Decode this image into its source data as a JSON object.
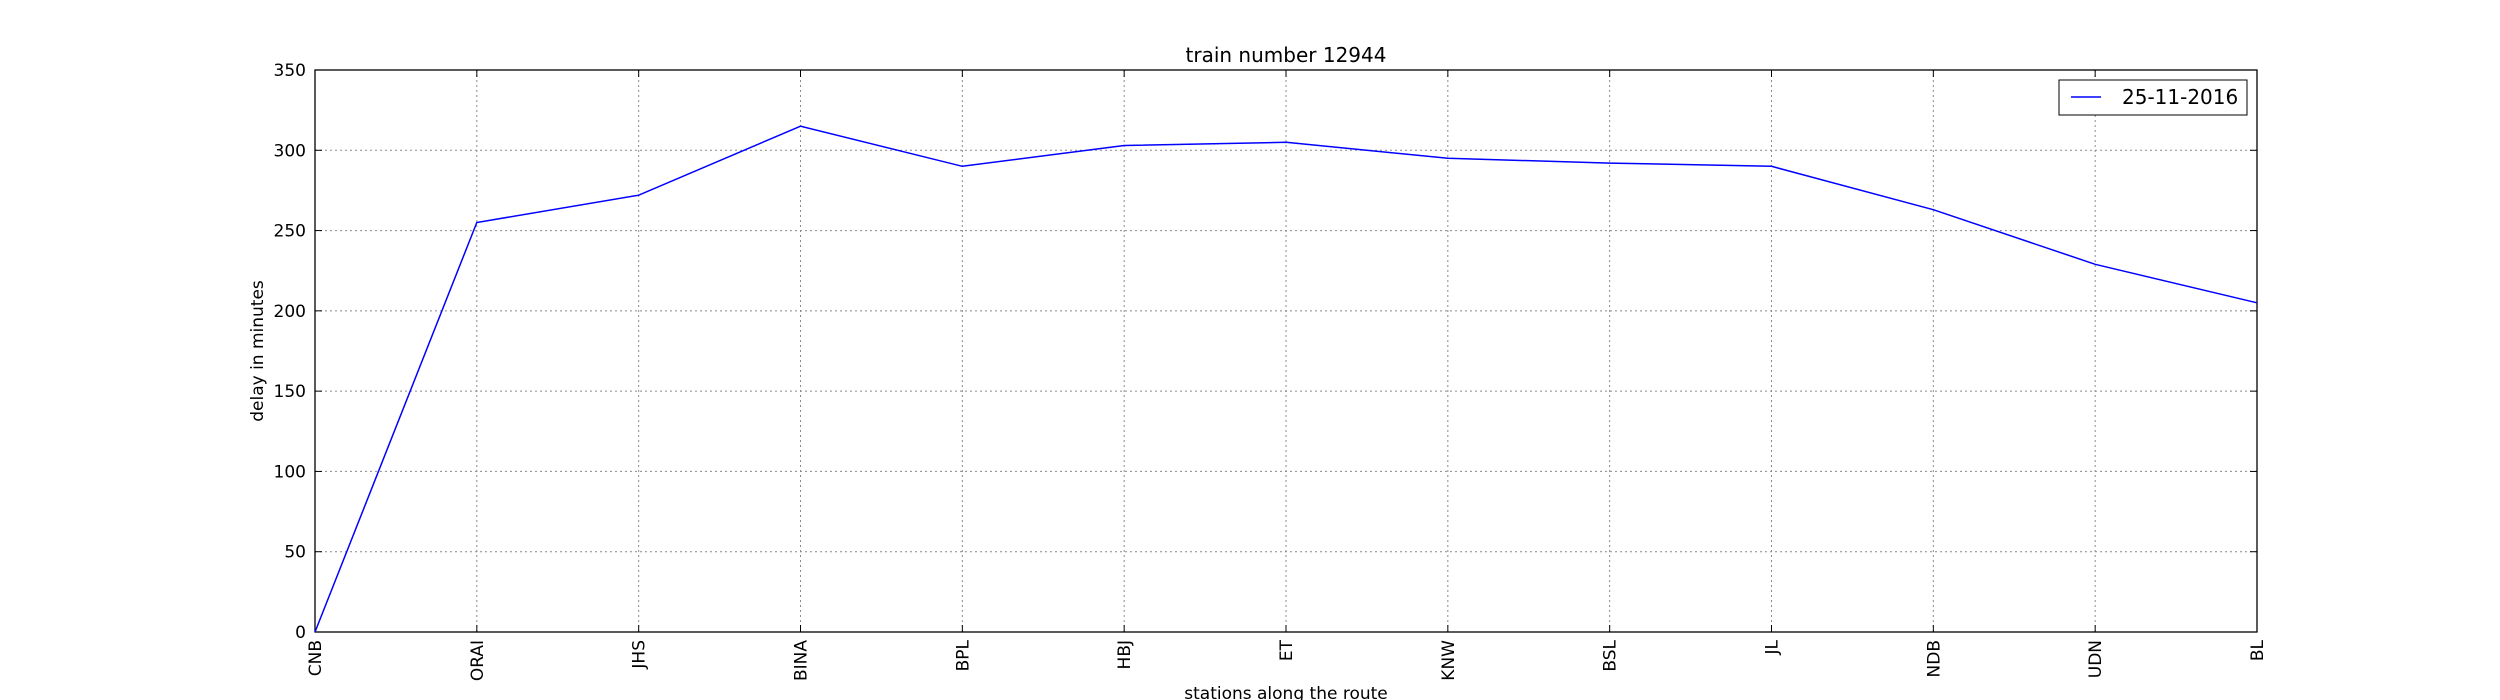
{
  "chart_data": {
    "type": "line",
    "title": "train number 12944",
    "xlabel": "stations along the route",
    "ylabel": "delay in minutes",
    "categories": [
      "CNB",
      "ORAI",
      "JHS",
      "BINA",
      "BPL",
      "HBJ",
      "ET",
      "KNW",
      "BSL",
      "JL",
      "NDB",
      "UDN",
      "BL"
    ],
    "series": [
      {
        "name": "25-11-2016",
        "color": "#0000ff",
        "values": [
          0,
          255,
          272,
          315,
          290,
          303,
          305,
          295,
          292,
          290,
          263,
          229,
          205
        ]
      }
    ],
    "ylim": [
      0,
      350
    ],
    "yticks": [
      0,
      50,
      100,
      150,
      200,
      250,
      300,
      350
    ],
    "grid": true,
    "legend_position": "top-right"
  }
}
